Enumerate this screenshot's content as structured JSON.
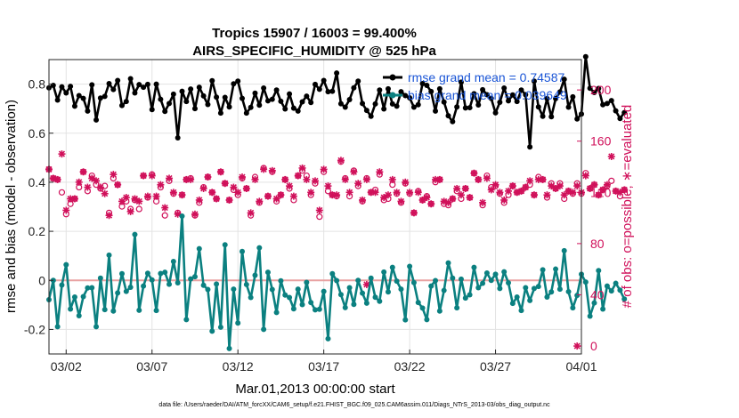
{
  "chart_data": {
    "type": "line",
    "title": "Tropics 15907 / 16003 = 99.400%",
    "subtitle": "AIRS_SPECIFIC_HUMIDITY @ 525 hPa",
    "xlabel": "Mar.01,2013 00:00:00 start",
    "ylabel": "rmse and bias (model - observation)",
    "y2label": "# of obs: o=possible; ∗=evaluated",
    "footnote": "data file: /Users/raeder/DAI/ATM_forcXX/CAM6_setup/f.e21.FHIST_BGC.f09_025.CAM6assim.011/Diags_NTrS_2013-03/obs_diag_output.nc",
    "xlim": [
      0,
      31
    ],
    "ylim": [
      -0.3,
      0.9
    ],
    "y2lim": [
      -6.2,
      223.7
    ],
    "x_ticks": [
      {
        "pos": 1,
        "label": "03/02"
      },
      {
        "pos": 6,
        "label": "03/07"
      },
      {
        "pos": 11,
        "label": "03/12"
      },
      {
        "pos": 16,
        "label": "03/17"
      },
      {
        "pos": 21,
        "label": "03/22"
      },
      {
        "pos": 26,
        "label": "03/27"
      },
      {
        "pos": 31,
        "label": "04/01"
      }
    ],
    "y_ticks": [
      {
        "v": -0.2,
        "label": "-0.2"
      },
      {
        "v": 0,
        "label": "0"
      },
      {
        "v": 0.2,
        "label": "0.2"
      },
      {
        "v": 0.4,
        "label": "0.4"
      },
      {
        "v": 0.6,
        "label": "0.6"
      },
      {
        "v": 0.8,
        "label": "0.8"
      }
    ],
    "y2_ticks": [
      {
        "v": 0,
        "label": "0"
      },
      {
        "v": 40,
        "label": "40"
      },
      {
        "v": 80,
        "label": "80"
      },
      {
        "v": 120,
        "label": "120"
      },
      {
        "v": 160,
        "label": "160"
      },
      {
        "v": 200,
        "label": "200"
      }
    ],
    "grid": true,
    "legend": {
      "location": "top-right",
      "entries": [
        {
          "label": "rmse grand mean = 0.74587",
          "color": "#000000"
        },
        {
          "label": "bias grand mean = 0.039649",
          "color": "#0b8080"
        }
      ]
    },
    "colors": {
      "rmse": "#000000",
      "bias": "#0b8080",
      "obs": "#d0105a",
      "zero_line": "#e8a0a0"
    },
    "series": [
      {
        "name": "rmse",
        "axis": "left",
        "x_start": 0.0,
        "x_step": 0.25,
        "values": [
          0.785,
          0.795,
          0.735,
          0.789,
          0.764,
          0.791,
          0.71,
          0.753,
          0.742,
          0.69,
          0.797,
          0.654,
          0.743,
          0.75,
          0.802,
          0.778,
          0.815,
          0.713,
          0.729,
          0.822,
          0.764,
          0.798,
          0.787,
          0.799,
          0.696,
          0.8,
          0.738,
          0.689,
          0.721,
          0.759,
          0.581,
          0.771,
          0.729,
          0.78,
          0.7,
          0.787,
          0.752,
          0.717,
          0.814,
          0.747,
          0.682,
          0.746,
          0.707,
          0.801,
          0.812,
          0.742,
          0.682,
          0.705,
          0.763,
          0.714,
          0.784,
          0.732,
          0.738,
          0.776,
          0.73,
          0.699,
          0.76,
          0.702,
          0.69,
          0.728,
          0.751,
          0.725,
          0.799,
          0.779,
          0.815,
          0.769,
          0.771,
          0.845,
          0.72,
          0.706,
          0.737,
          0.785,
          0.812,
          0.721,
          0.693,
          0.669,
          0.719,
          0.776,
          0.699,
          0.781,
          0.719,
          0.71,
          0.769,
          0.753,
          0.744,
          0.706,
          0.716,
          0.802,
          0.795,
          0.77,
          0.69,
          0.781,
          0.727,
          0.671,
          0.647,
          0.707,
          0.808,
          0.703,
          0.704,
          0.761,
          0.715,
          0.777,
          0.757,
          0.742,
          0.683,
          0.726,
          0.784,
          0.732,
          0.756,
          0.729,
          0.776,
          0.757,
          0.544,
          0.812,
          0.707,
          0.669,
          0.741,
          0.667,
          0.741,
          0.768,
          0.82,
          0.706,
          0.748,
          0.658,
          0.678,
          0.912,
          0.783,
          0.766,
          0.782,
          0.716,
          0.721,
          0.733,
          0.691,
          0.66,
          0.684
        ]
      },
      {
        "name": "bias",
        "axis": "left",
        "x_start": 0.0,
        "x_step": 0.25,
        "values": [
          -0.079,
          0.0,
          -0.189,
          -0.019,
          0.064,
          -0.117,
          -0.068,
          -0.144,
          -0.066,
          -0.031,
          -0.03,
          -0.189,
          0.009,
          -0.119,
          0.103,
          -0.125,
          -0.051,
          0.027,
          -0.045,
          -0.028,
          0.187,
          -0.122,
          -0.023,
          0.029,
          0.002,
          -0.123,
          0.028,
          0.033,
          -0.016,
          0.077,
          -0.01,
          0.262,
          -0.16,
          0.006,
          0.015,
          0.129,
          -0.02,
          -0.037,
          -0.207,
          -0.015,
          -0.191,
          0.145,
          -0.278,
          -0.036,
          -0.174,
          0.118,
          -0.017,
          -0.07,
          0.021,
          0.133,
          -0.2,
          0.033,
          -0.037,
          -0.131,
          -0.002,
          -0.06,
          -0.07,
          -0.116,
          -0.036,
          -0.099,
          -0.008,
          -0.09,
          -0.12,
          -0.118,
          -0.045,
          -0.238,
          0.027,
          -0.001,
          -0.058,
          -0.111,
          -0.03,
          -0.098,
          0.0,
          -0.052,
          -0.093,
          0.009,
          -0.069,
          -0.085,
          0.034,
          -0.047,
          0.053,
          -0.003,
          -0.036,
          -0.161,
          0.057,
          -0.009,
          -0.09,
          -0.113,
          -0.16,
          -0.023,
          -0.001,
          -0.125,
          -0.041,
          0.071,
          0.009,
          -0.112,
          0.005,
          -0.072,
          -0.059,
          0.053,
          -0.03,
          -0.012,
          0.03,
          0.0,
          0.025,
          -0.033,
          0.035,
          -0.01,
          -0.094,
          -0.068,
          -0.123,
          -0.03,
          -0.082,
          -0.033,
          -0.025,
          0.043,
          -0.068,
          -0.047,
          0.046,
          -0.036,
          0.121,
          -0.046,
          -0.112,
          -0.061,
          0.025,
          -0.007,
          -0.146,
          -0.092,
          0.04,
          -0.117,
          -0.023,
          -0.043,
          -0.012,
          -0.04,
          -0.076
        ]
      },
      {
        "name": "obs_possible",
        "axis": "right",
        "marker": "o",
        "x_start": 0.0,
        "x_step": 0.25,
        "values": [
          138,
          131,
          130,
          120,
          103,
          111,
          115,
          124,
          136,
          121,
          133,
          126,
          123,
          125,
          104,
          131,
          126,
          109,
          113,
          107,
          114,
          107,
          133,
          116,
          134,
          113,
          124,
          102,
          129,
          119,
          104,
          118,
          130,
          131,
          102,
          112,
          124,
          132,
          120,
          115,
          136,
          127,
          114,
          122,
          118,
          131,
          123,
          102,
          132,
          112,
          139,
          117,
          136,
          113,
          118,
          130,
          123,
          114,
          133,
          137,
          133,
          118,
          127,
          101,
          136,
          121,
          118,
          117,
          144,
          131,
          117,
          137,
          125,
          113,
          131,
          120,
          122,
          134,
          114,
          115,
          126,
          119,
          112,
          127,
          119,
          104,
          121,
          114,
          117,
          111,
          128,
          130,
          111,
          110,
          115,
          121,
          115,
          123,
          116,
          135,
          130,
          110,
          133,
          124,
          125,
          119,
          112,
          118,
          125,
          120,
          121,
          124,
          126,
          118,
          132,
          130,
          116,
          127,
          123,
          127,
          115,
          121,
          119,
          127,
          119,
          135,
          123,
          126,
          118,
          122,
          125,
          129,
          121,
          117,
          122
        ]
      },
      {
        "name": "obs_evaluated",
        "axis": "right",
        "marker": "*",
        "x_start": 0.0,
        "x_step": 0.25,
        "values": [
          138,
          131,
          130,
          150,
          106,
          115,
          115,
          128,
          136,
          124,
          131,
          129,
          124,
          119,
          102,
          134,
          126,
          113,
          116,
          105,
          115,
          113,
          133,
          117,
          133,
          117,
          126,
          108,
          131,
          120,
          103,
          118,
          130,
          130,
          103,
          114,
          123,
          132,
          120,
          115,
          136,
          127,
          114,
          124,
          120,
          132,
          123,
          104,
          130,
          113,
          138,
          117,
          137,
          115,
          118,
          130,
          125,
          117,
          133,
          139,
          130,
          120,
          129,
          106,
          138,
          125,
          118,
          118,
          145,
          130,
          120,
          136,
          127,
          114,
          130,
          120,
          120,
          136,
          116,
          118,
          130,
          120,
          113,
          128,
          120,
          104,
          120,
          114,
          116,
          111,
          130,
          130,
          113,
          112,
          115,
          123,
          118,
          123,
          116,
          135,
          130,
          112,
          131,
          122,
          126,
          120,
          114,
          121,
          125,
          120,
          121,
          124,
          129,
          118,
          130,
          130,
          118,
          125,
          123,
          125,
          118,
          121,
          120,
          125,
          120,
          133,
          123,
          126,
          118,
          122,
          126,
          148,
          121,
          120,
          122
        ]
      },
      {
        "name": "obs_extra_evaluated",
        "axis": "right",
        "marker": "*",
        "x": [
          18.5,
          30.75
        ],
        "values": [
          48,
          0
        ]
      }
    ]
  }
}
